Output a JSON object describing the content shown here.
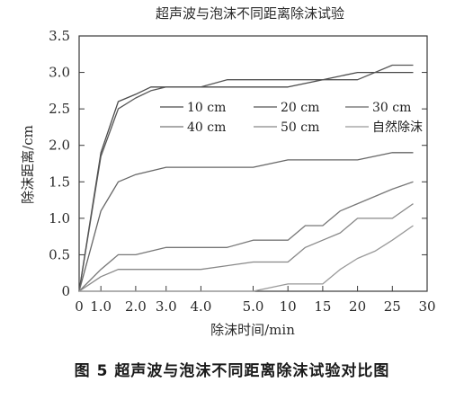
{
  "caption": "图 5   超声波与泡沫不同距离除沫试验对比图",
  "chart_data": {
    "type": "line",
    "title": "超声波与泡沫不同距离除沫试验",
    "xlabel": "除沫时间/min",
    "ylabel": "除沫距离/cm",
    "ylim": [
      0,
      3.5
    ],
    "yticks": [
      "0",
      "0.5",
      "1.0",
      "1.5",
      "2.0",
      "2.5",
      "3.0",
      "3.5"
    ],
    "xticks": [
      "0",
      "1.0",
      "2.0",
      "3.0",
      "4.0",
      "5.0",
      "10",
      "15",
      "20",
      "25",
      "30"
    ],
    "grid": false,
    "legend_position": "top-right inside plot",
    "series": [
      {
        "name": "10 cm",
        "color": "#4a4a4a",
        "points": [
          [
            "0",
            0
          ],
          [
            "1.0",
            1.9
          ],
          [
            "1.5",
            2.6
          ],
          [
            "2.0",
            2.7
          ],
          [
            "2.5",
            2.8
          ],
          [
            "3.0",
            2.8
          ],
          [
            "4.0",
            2.8
          ],
          [
            "5.0",
            2.8
          ],
          [
            "10",
            2.8
          ],
          [
            "15",
            2.9
          ],
          [
            "20",
            3.0
          ],
          [
            "25",
            3.0
          ],
          [
            "28",
            3.0
          ]
        ]
      },
      {
        "name": "20 cm",
        "color": "#555555",
        "points": [
          [
            "0",
            0
          ],
          [
            "1.0",
            1.85
          ],
          [
            "1.5",
            2.5
          ],
          [
            "2.0",
            2.65
          ],
          [
            "2.5",
            2.75
          ],
          [
            "3.0",
            2.8
          ],
          [
            "4.0",
            2.8
          ],
          [
            "4.5",
            2.9
          ],
          [
            "5.0",
            2.9
          ],
          [
            "10",
            2.9
          ],
          [
            "15",
            2.9
          ],
          [
            "20",
            2.9
          ],
          [
            "25",
            3.1
          ],
          [
            "28",
            3.1
          ]
        ]
      },
      {
        "name": "30 cm",
        "color": "#666666",
        "points": [
          [
            "0",
            0
          ],
          [
            "1.0",
            1.1
          ],
          [
            "1.5",
            1.5
          ],
          [
            "2.0",
            1.6
          ],
          [
            "3.0",
            1.7
          ],
          [
            "4.0",
            1.7
          ],
          [
            "5.0",
            1.7
          ],
          [
            "10",
            1.8
          ],
          [
            "15",
            1.8
          ],
          [
            "20",
            1.8
          ],
          [
            "25",
            1.9
          ],
          [
            "28",
            1.9
          ]
        ]
      },
      {
        "name": "40 cm",
        "color": "#777777",
        "points": [
          [
            "0",
            0
          ],
          [
            "1.0",
            0.3
          ],
          [
            "1.5",
            0.5
          ],
          [
            "2.0",
            0.5
          ],
          [
            "3.0",
            0.6
          ],
          [
            "4.0",
            0.6
          ],
          [
            "4.5",
            0.6
          ],
          [
            "5.0",
            0.7
          ],
          [
            "10",
            0.7
          ],
          [
            "12.5",
            0.9
          ],
          [
            "15",
            0.9
          ],
          [
            "17.5",
            1.1
          ],
          [
            "20",
            1.2
          ],
          [
            "25",
            1.4
          ],
          [
            "28",
            1.5
          ]
        ]
      },
      {
        "name": "50 cm",
        "color": "#888888",
        "points": [
          [
            "0",
            0
          ],
          [
            "1.0",
            0.2
          ],
          [
            "1.5",
            0.3
          ],
          [
            "2.0",
            0.3
          ],
          [
            "3.0",
            0.3
          ],
          [
            "4.0",
            0.3
          ],
          [
            "5.0",
            0.4
          ],
          [
            "10",
            0.4
          ],
          [
            "12.5",
            0.6
          ],
          [
            "15",
            0.7
          ],
          [
            "17.5",
            0.8
          ],
          [
            "20",
            1.0
          ],
          [
            "25",
            1.0
          ],
          [
            "28",
            1.2
          ]
        ]
      },
      {
        "name": "自然除沫",
        "color": "#999999",
        "points": [
          [
            "0",
            0
          ],
          [
            "1.0",
            0.0
          ],
          [
            "2.0",
            0.0
          ],
          [
            "3.0",
            0.0
          ],
          [
            "4.0",
            0.0
          ],
          [
            "5.0",
            0.0
          ],
          [
            "10",
            0.1
          ],
          [
            "15",
            0.1
          ],
          [
            "17.5",
            0.3
          ],
          [
            "20",
            0.45
          ],
          [
            "22.5",
            0.55
          ],
          [
            "25",
            0.7
          ],
          [
            "28",
            0.9
          ]
        ]
      }
    ]
  }
}
